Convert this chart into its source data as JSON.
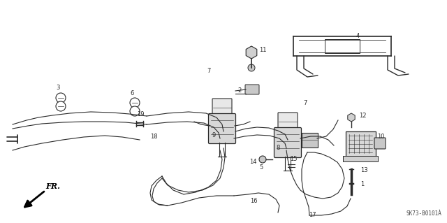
{
  "bg_color": "#ffffff",
  "line_color": "#2a2a2a",
  "diagram_code": "SK73-B0101À",
  "fr_label": "FR.",
  "fig_w": 6.4,
  "fig_h": 3.19,
  "dpi": 100
}
